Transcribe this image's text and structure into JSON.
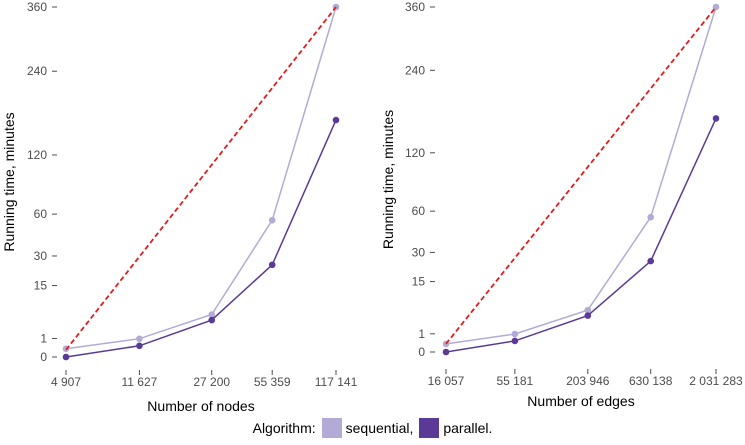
{
  "legend": {
    "title": "Algorithm:",
    "items": [
      {
        "label": "sequential,",
        "color": "#b3aad6"
      },
      {
        "label": "parallel.",
        "color": "#5a3a96"
      }
    ]
  },
  "colors": {
    "fit_line": "#e41a1c",
    "tick": "#4d4d4d"
  },
  "chart_data": [
    {
      "type": "line",
      "xlabel": "Number of nodes",
      "ylabel": "Running time, minutes",
      "xscale": "log",
      "yscale": "sqrt",
      "x_ticks": [
        4907,
        11627,
        27200,
        55359,
        117141
      ],
      "x_tick_labels": [
        "4 907",
        "11 627",
        "27 200",
        "55 359",
        "117 141"
      ],
      "y_ticks": [
        0,
        1,
        15,
        30,
        60,
        120,
        240,
        360
      ],
      "y_tick_labels": [
        "0",
        "1",
        "15",
        "30",
        "60",
        "120",
        "240",
        "360"
      ],
      "series": [
        {
          "name": "sequential",
          "color": "#b3aad6",
          "x": [
            4907,
            11627,
            27200,
            55359,
            117141
          ],
          "y": [
            0.2,
            0.98,
            5.3,
            55,
            360
          ]
        },
        {
          "name": "parallel",
          "color": "#5a3a96",
          "x": [
            4907,
            11627,
            27200,
            55359,
            117141
          ],
          "y": [
            0.0,
            0.37,
            4.0,
            25,
            165
          ]
        }
      ],
      "fit": {
        "style": "dashed",
        "color": "#e41a1c",
        "x": [
          4907,
          117141
        ],
        "y": [
          0.15,
          360
        ]
      }
    },
    {
      "type": "line",
      "xlabel": "Number of edges",
      "ylabel": "Running time, minutes",
      "xscale": "log",
      "yscale": "sqrt",
      "x_ticks": [
        16057,
        55181,
        203946,
        630138,
        2031283
      ],
      "x_tick_labels": [
        "16 057",
        "55 181",
        "203 946",
        "630 138",
        "2 031 283"
      ],
      "y_ticks": [
        0,
        1,
        15,
        30,
        60,
        120,
        240,
        360
      ],
      "y_tick_labels": [
        "0",
        "1",
        "15",
        "30",
        "60",
        "120",
        "240",
        "360"
      ],
      "series": [
        {
          "name": "sequential",
          "color": "#b3aad6",
          "x": [
            16057,
            55181,
            203946,
            630138,
            2031283
          ],
          "y": [
            0.2,
            0.98,
            5.3,
            55,
            360
          ]
        },
        {
          "name": "parallel",
          "color": "#5a3a96",
          "x": [
            16057,
            55181,
            203946,
            630138,
            2031283
          ],
          "y": [
            0.0,
            0.37,
            4.0,
            25,
            165
          ]
        }
      ],
      "fit": {
        "style": "dashed",
        "color": "#e41a1c",
        "x": [
          16057,
          2031283
        ],
        "y": [
          0.2,
          360
        ]
      }
    }
  ]
}
